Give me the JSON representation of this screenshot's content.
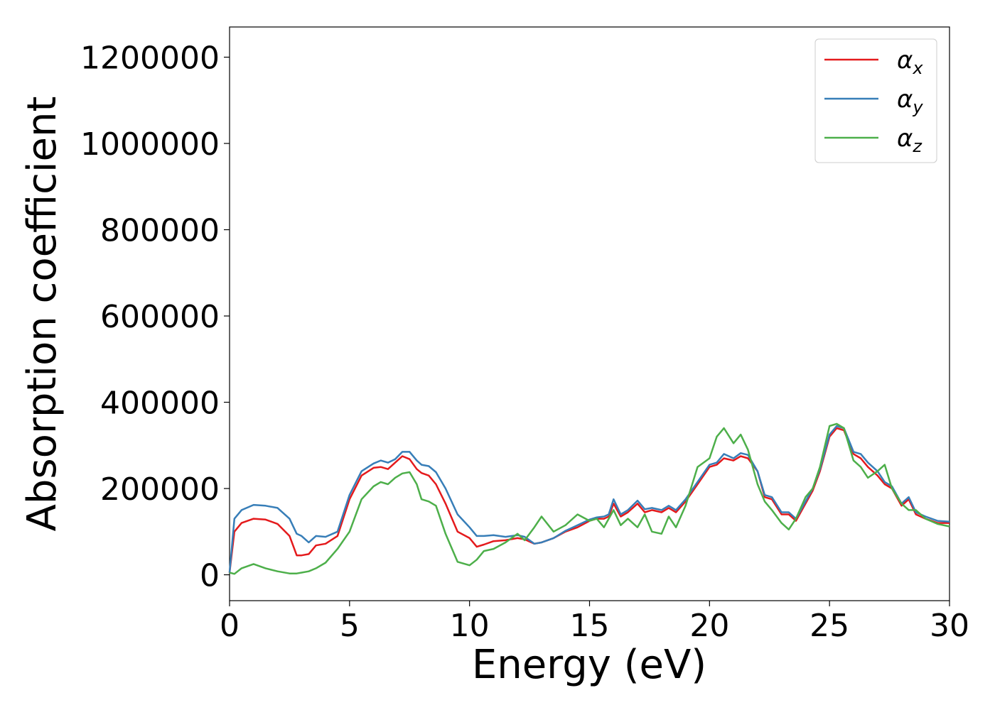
{
  "chart_data": {
    "type": "line",
    "xlabel": "Energy (eV)",
    "ylabel": "Absorption coefficient",
    "xlim": [
      0,
      30
    ],
    "ylim": [
      -60000,
      1270000
    ],
    "xticks": [
      0,
      5,
      10,
      15,
      20,
      25,
      30
    ],
    "yticks": [
      0,
      200000,
      400000,
      600000,
      800000,
      1000000,
      1200000
    ],
    "grid": false,
    "legend_position": "upper-right",
    "series": [
      {
        "name": "α_x",
        "legend_base": "α",
        "legend_sub": "x",
        "color": "#e41a1c",
        "x": [
          0,
          0.2,
          0.5,
          1,
          1.5,
          2,
          2.5,
          2.8,
          3,
          3.3,
          3.6,
          4,
          4.5,
          5,
          5.5,
          6,
          6.3,
          6.6,
          6.9,
          7.2,
          7.5,
          7.8,
          8,
          8.3,
          8.6,
          9,
          9.5,
          10,
          10.3,
          10.6,
          11,
          11.5,
          12,
          12.3,
          12.7,
          13,
          13.5,
          14,
          14.5,
          15,
          15.3,
          15.6,
          15.8,
          16,
          16.3,
          16.6,
          17,
          17.3,
          17.6,
          18,
          18.3,
          18.6,
          19,
          19.5,
          20,
          20.3,
          20.6,
          21,
          21.3,
          21.6,
          22,
          22.3,
          22.6,
          23,
          23.3,
          23.6,
          24,
          24.3,
          24.6,
          25,
          25.3,
          25.6,
          26,
          26.3,
          26.6,
          27,
          27.3,
          27.6,
          28,
          28.3,
          28.6,
          29,
          29.5,
          30
        ],
        "y": [
          5000,
          100000,
          120000,
          130000,
          128000,
          118000,
          90000,
          45000,
          45000,
          48000,
          68000,
          72000,
          90000,
          175000,
          230000,
          248000,
          250000,
          245000,
          260000,
          275000,
          268000,
          245000,
          236000,
          230000,
          210000,
          165000,
          100000,
          85000,
          65000,
          70000,
          78000,
          80000,
          85000,
          82000,
          72000,
          75000,
          85000,
          100000,
          110000,
          125000,
          130000,
          130000,
          135000,
          165000,
          135000,
          145000,
          165000,
          145000,
          150000,
          145000,
          155000,
          145000,
          170000,
          210000,
          250000,
          255000,
          270000,
          265000,
          275000,
          270000,
          240000,
          180000,
          175000,
          140000,
          140000,
          125000,
          165000,
          195000,
          240000,
          320000,
          340000,
          335000,
          280000,
          270000,
          250000,
          230000,
          210000,
          200000,
          160000,
          175000,
          140000,
          130000,
          120000,
          120000
        ]
      },
      {
        "name": "α_y",
        "legend_base": "α",
        "legend_sub": "y",
        "color": "#377eb8",
        "x": [
          0,
          0.2,
          0.5,
          1,
          1.5,
          2,
          2.5,
          2.8,
          3,
          3.3,
          3.6,
          4,
          4.5,
          5,
          5.5,
          6,
          6.3,
          6.6,
          6.9,
          7.2,
          7.5,
          7.8,
          8,
          8.3,
          8.6,
          9,
          9.5,
          10,
          10.3,
          10.6,
          11,
          11.5,
          12,
          12.3,
          12.7,
          13,
          13.5,
          14,
          14.5,
          15,
          15.3,
          15.6,
          15.8,
          16,
          16.3,
          16.6,
          17,
          17.3,
          17.6,
          18,
          18.3,
          18.6,
          19,
          19.5,
          20,
          20.3,
          20.6,
          21,
          21.3,
          21.6,
          22,
          22.3,
          22.6,
          23,
          23.3,
          23.6,
          24,
          24.3,
          24.6,
          25,
          25.3,
          25.6,
          26,
          26.3,
          26.6,
          27,
          27.3,
          27.6,
          28,
          28.3,
          28.6,
          29,
          29.5,
          30
        ],
        "y": [
          5000,
          130000,
          150000,
          162000,
          160000,
          155000,
          130000,
          95000,
          90000,
          75000,
          90000,
          88000,
          100000,
          185000,
          240000,
          258000,
          265000,
          260000,
          268000,
          285000,
          285000,
          265000,
          255000,
          252000,
          238000,
          200000,
          140000,
          110000,
          90000,
          90000,
          92000,
          88000,
          92000,
          88000,
          72000,
          75000,
          85000,
          102000,
          115000,
          128000,
          133000,
          135000,
          140000,
          175000,
          140000,
          150000,
          172000,
          152000,
          155000,
          150000,
          160000,
          150000,
          175000,
          215000,
          255000,
          260000,
          280000,
          270000,
          282000,
          278000,
          240000,
          185000,
          180000,
          145000,
          145000,
          130000,
          170000,
          200000,
          245000,
          325000,
          345000,
          340000,
          285000,
          280000,
          260000,
          240000,
          215000,
          205000,
          165000,
          180000,
          145000,
          135000,
          125000,
          123000
        ]
      },
      {
        "name": "α_z",
        "legend_base": "α",
        "legend_sub": "z",
        "color": "#4daf4a",
        "x": [
          0,
          0.2,
          0.5,
          1,
          1.5,
          2,
          2.5,
          2.8,
          3,
          3.3,
          3.6,
          4,
          4.5,
          5,
          5.5,
          6,
          6.3,
          6.6,
          6.9,
          7.2,
          7.5,
          7.8,
          8,
          8.3,
          8.6,
          9,
          9.5,
          10,
          10.3,
          10.6,
          11,
          11.5,
          12,
          12.3,
          12.7,
          13,
          13.5,
          14,
          14.5,
          15,
          15.3,
          15.6,
          15.8,
          16,
          16.3,
          16.6,
          17,
          17.3,
          17.6,
          18,
          18.3,
          18.6,
          19,
          19.5,
          20,
          20.3,
          20.6,
          21,
          21.3,
          21.6,
          22,
          22.3,
          22.6,
          23,
          23.3,
          23.6,
          24,
          24.3,
          24.6,
          25,
          25.3,
          25.6,
          26,
          26.3,
          26.6,
          27,
          27.3,
          27.6,
          28,
          28.3,
          28.6,
          29,
          29.5,
          30
        ],
        "y": [
          5000,
          2000,
          15000,
          25000,
          15000,
          8000,
          3000,
          3000,
          5000,
          8000,
          15000,
          28000,
          60000,
          100000,
          175000,
          205000,
          215000,
          210000,
          225000,
          235000,
          238000,
          210000,
          175000,
          170000,
          160000,
          95000,
          30000,
          22000,
          35000,
          55000,
          60000,
          75000,
          95000,
          80000,
          110000,
          135000,
          100000,
          115000,
          140000,
          125000,
          130000,
          110000,
          130000,
          150000,
          115000,
          130000,
          110000,
          140000,
          100000,
          95000,
          135000,
          110000,
          160000,
          250000,
          270000,
          320000,
          340000,
          305000,
          325000,
          290000,
          210000,
          170000,
          150000,
          120000,
          105000,
          130000,
          180000,
          200000,
          250000,
          345000,
          350000,
          340000,
          265000,
          250000,
          225000,
          240000,
          255000,
          200000,
          165000,
          150000,
          150000,
          130000,
          118000,
          112000
        ]
      }
    ]
  }
}
